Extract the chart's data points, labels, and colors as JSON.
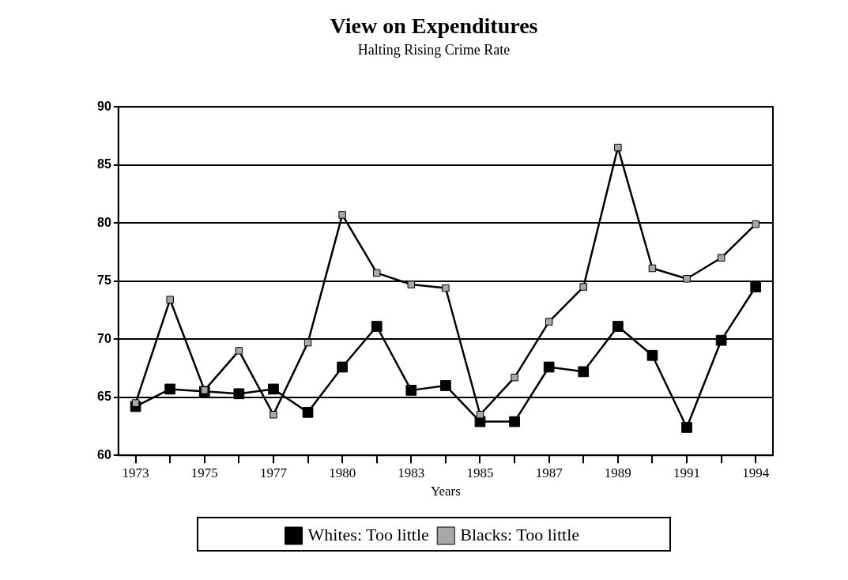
{
  "chart_data": {
    "type": "line",
    "title": "View on Expenditures",
    "subtitle": "Halting Rising Crime Rate",
    "xlabel": "Years",
    "categories": [
      "1973",
      null,
      "1975",
      null,
      "1977",
      null,
      "1980",
      null,
      "1983",
      null,
      "1985",
      null,
      "1987",
      null,
      "1989",
      null,
      "1991",
      null,
      "1994"
    ],
    "series": [
      {
        "name": "Whites: Too little",
        "color": "#000000",
        "values": [
          64.2,
          65.7,
          65.5,
          65.3,
          65.7,
          63.7,
          67.6,
          71.1,
          65.6,
          66.0,
          62.9,
          62.9,
          67.6,
          67.2,
          71.1,
          68.6,
          62.4,
          69.9,
          74.5
        ]
      },
      {
        "name": "Blacks: Too little",
        "color": "#a8a8a8",
        "values": [
          64.5,
          73.4,
          65.6,
          69.0,
          63.5,
          69.7,
          80.7,
          75.7,
          74.7,
          74.4,
          63.5,
          66.7,
          71.5,
          74.5,
          86.5,
          76.1,
          75.2,
          77.0,
          79.9
        ]
      }
    ],
    "ylim": [
      60,
      90
    ],
    "yticks": [
      60,
      65,
      70,
      75,
      80,
      85,
      90
    ],
    "grid": "y",
    "legend": "bottom",
    "marker": "square",
    "line_style": "solid"
  }
}
